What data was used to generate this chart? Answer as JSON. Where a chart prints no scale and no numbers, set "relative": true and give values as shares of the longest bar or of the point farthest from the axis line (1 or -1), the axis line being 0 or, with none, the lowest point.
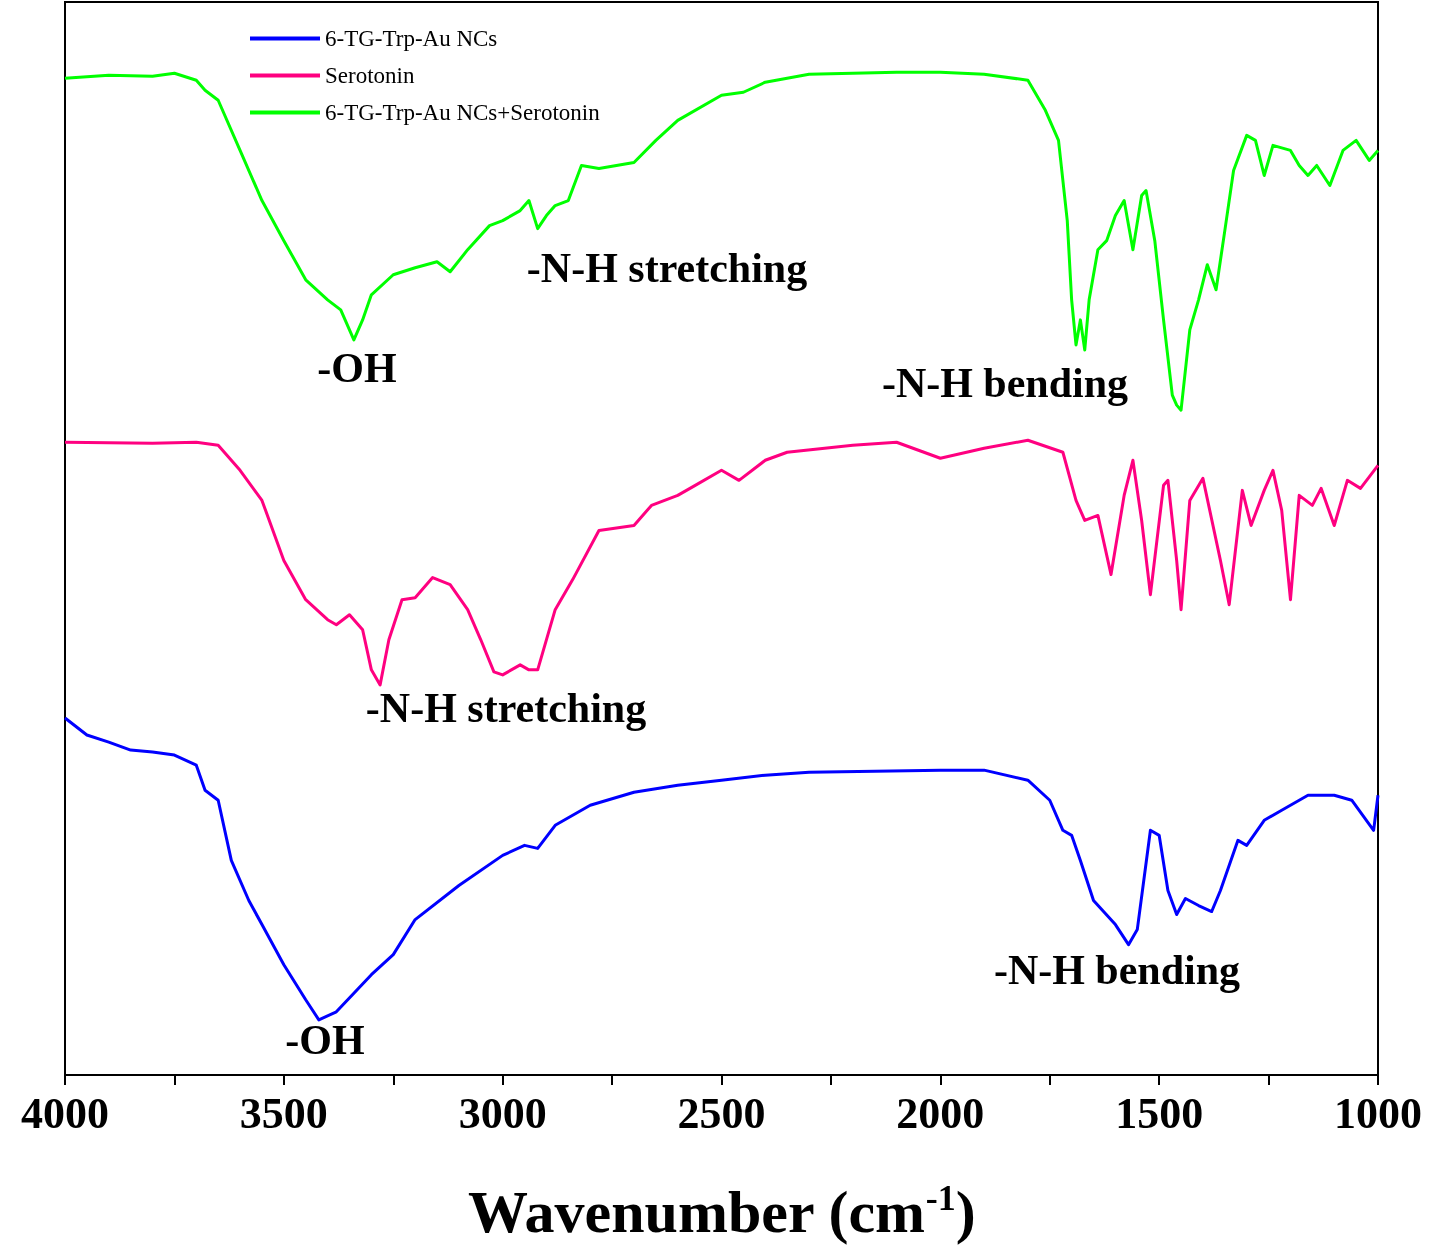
{
  "chart_data": {
    "type": "line",
    "relative": true,
    "xlabel": "Wavenumber (cm$^{-1}$)",
    "xlim": [
      4000,
      1000
    ],
    "xticks": [
      4000,
      {
        "value": 3750,
        "label": null
      },
      3500,
      {
        "value": 3250,
        "label": null
      },
      3000,
      {
        "value": 2750,
        "label": null
      },
      2500,
      {
        "value": 2250,
        "label": null
      },
      2000,
      {
        "value": 1750,
        "label": null
      },
      1500,
      {
        "value": 1250,
        "label": null
      },
      1000
    ],
    "legend": "top left",
    "marker": "none",
    "line_style": "solid",
    "grid": false,
    "series": [
      {
        "name": "6-TG-Trp-Au NCs",
        "color": "#0000ff",
        "x": [
          4000,
          3950,
          3900,
          3850,
          3800,
          3750,
          3700,
          3680,
          3650,
          3620,
          3580,
          3550,
          3500,
          3450,
          3420,
          3380,
          3300,
          3250,
          3200,
          3100,
          3000,
          2950,
          2920,
          2880,
          2800,
          2700,
          2600,
          2500,
          2400,
          2300,
          2000,
          1900,
          1800,
          1750,
          1720,
          1700,
          1680,
          1650,
          1600,
          1570,
          1550,
          1520,
          1500,
          1480,
          1460,
          1440,
          1410,
          1380,
          1360,
          1320,
          1300,
          1260,
          1220,
          1160,
          1100,
          1060,
          1010,
          1000
        ],
        "values": [
          0.356,
          0.339,
          0.332,
          0.324,
          0.322,
          0.319,
          0.309,
          0.284,
          0.274,
          0.214,
          0.174,
          0.15,
          0.11,
          0.075,
          0.055,
          0.063,
          0.1,
          0.12,
          0.155,
          0.189,
          0.219,
          0.229,
          0.226,
          0.249,
          0.269,
          0.282,
          0.289,
          0.294,
          0.299,
          0.302,
          0.304,
          0.304,
          0.294,
          0.274,
          0.244,
          0.239,
          0.214,
          0.174,
          0.15,
          0.13,
          0.145,
          0.244,
          0.239,
          0.184,
          0.16,
          0.176,
          0.169,
          0.163,
          0.184,
          0.234,
          0.229,
          0.254,
          0.264,
          0.279,
          0.279,
          0.274,
          0.244,
          0.279
        ]
      },
      {
        "name": "Serotonin",
        "color": "#ff0080",
        "x": [
          4000,
          3800,
          3700,
          3650,
          3600,
          3550,
          3500,
          3450,
          3400,
          3380,
          3350,
          3320,
          3300,
          3280,
          3260,
          3230,
          3200,
          3160,
          3120,
          3080,
          3050,
          3020,
          3000,
          2960,
          2940,
          2920,
          2880,
          2840,
          2780,
          2700,
          2660,
          2600,
          2560,
          2500,
          2460,
          2400,
          2350,
          2200,
          2100,
          2000,
          1900,
          1800,
          1720,
          1690,
          1670,
          1640,
          1610,
          1580,
          1560,
          1540,
          1520,
          1490,
          1480,
          1460,
          1450,
          1430,
          1400,
          1360,
          1340,
          1310,
          1290,
          1260,
          1240,
          1220,
          1200,
          1180,
          1150,
          1130,
          1100,
          1070,
          1040,
          1000
        ],
        "values": [
          0.631,
          0.63,
          0.631,
          0.628,
          0.603,
          0.573,
          0.513,
          0.474,
          0.454,
          0.449,
          0.459,
          0.444,
          0.404,
          0.389,
          0.434,
          0.474,
          0.476,
          0.496,
          0.489,
          0.464,
          0.434,
          0.402,
          0.399,
          0.409,
          0.404,
          0.404,
          0.464,
          0.494,
          0.543,
          0.548,
          0.568,
          0.578,
          0.588,
          0.603,
          0.593,
          0.613,
          0.621,
          0.628,
          0.631,
          0.615,
          0.625,
          0.633,
          0.621,
          0.573,
          0.553,
          0.558,
          0.499,
          0.578,
          0.613,
          0.553,
          0.479,
          0.588,
          0.593,
          0.513,
          0.464,
          0.573,
          0.595,
          0.513,
          0.469,
          0.583,
          0.548,
          0.583,
          0.603,
          0.563,
          0.474,
          0.578,
          0.568,
          0.585,
          0.548,
          0.593,
          0.585,
          0.608
        ]
      },
      {
        "name": "6-TG-Trp-Au NCs+Serotonin",
        "color": "#00ff00",
        "x": [
          4000,
          3900,
          3800,
          3750,
          3700,
          3680,
          3650,
          3600,
          3550,
          3500,
          3450,
          3400,
          3370,
          3350,
          3340,
          3320,
          3300,
          3250,
          3200,
          3150,
          3120,
          3080,
          3030,
          3000,
          2960,
          2940,
          2920,
          2900,
          2880,
          2850,
          2820,
          2780,
          2700,
          2650,
          2600,
          2500,
          2450,
          2400,
          2300,
          2200,
          2100,
          2000,
          1900,
          1800,
          1760,
          1730,
          1710,
          1700,
          1690,
          1680,
          1670,
          1660,
          1640,
          1620,
          1600,
          1580,
          1560,
          1540,
          1530,
          1510,
          1490,
          1470,
          1460,
          1450,
          1430,
          1410,
          1390,
          1370,
          1350,
          1330,
          1300,
          1280,
          1260,
          1240,
          1200,
          1180,
          1160,
          1140,
          1110,
          1080,
          1050,
          1020,
          1000
        ],
        "values": [
          0.994,
          0.997,
          0.996,
          0.999,
          0.992,
          0.982,
          0.972,
          0.922,
          0.872,
          0.832,
          0.793,
          0.773,
          0.763,
          0.743,
          0.733,
          0.753,
          0.778,
          0.798,
          0.805,
          0.811,
          0.801,
          0.823,
          0.847,
          0.852,
          0.862,
          0.872,
          0.844,
          0.857,
          0.867,
          0.872,
          0.907,
          0.904,
          0.91,
          0.932,
          0.952,
          0.977,
          0.98,
          0.99,
          0.998,
          0.999,
          1,
          1,
          0.998,
          0.992,
          0.962,
          0.932,
          0.852,
          0.773,
          0.728,
          0.753,
          0.723,
          0.773,
          0.823,
          0.832,
          0.857,
          0.872,
          0.823,
          0.877,
          0.882,
          0.832,
          0.753,
          0.678,
          0.668,
          0.663,
          0.743,
          0.773,
          0.808,
          0.783,
          0.842,
          0.902,
          0.937,
          0.932,
          0.897,
          0.927,
          0.922,
          0.907,
          0.897,
          0.907,
          0.887,
          0.922,
          0.932,
          0.912,
          0.922
        ]
      }
    ],
    "annotations": [
      "-OH",
      "-N-H stretching",
      "-N-H bending",
      "-N-H stretching",
      "-OH",
      "-N-H bending"
    ]
  }
}
